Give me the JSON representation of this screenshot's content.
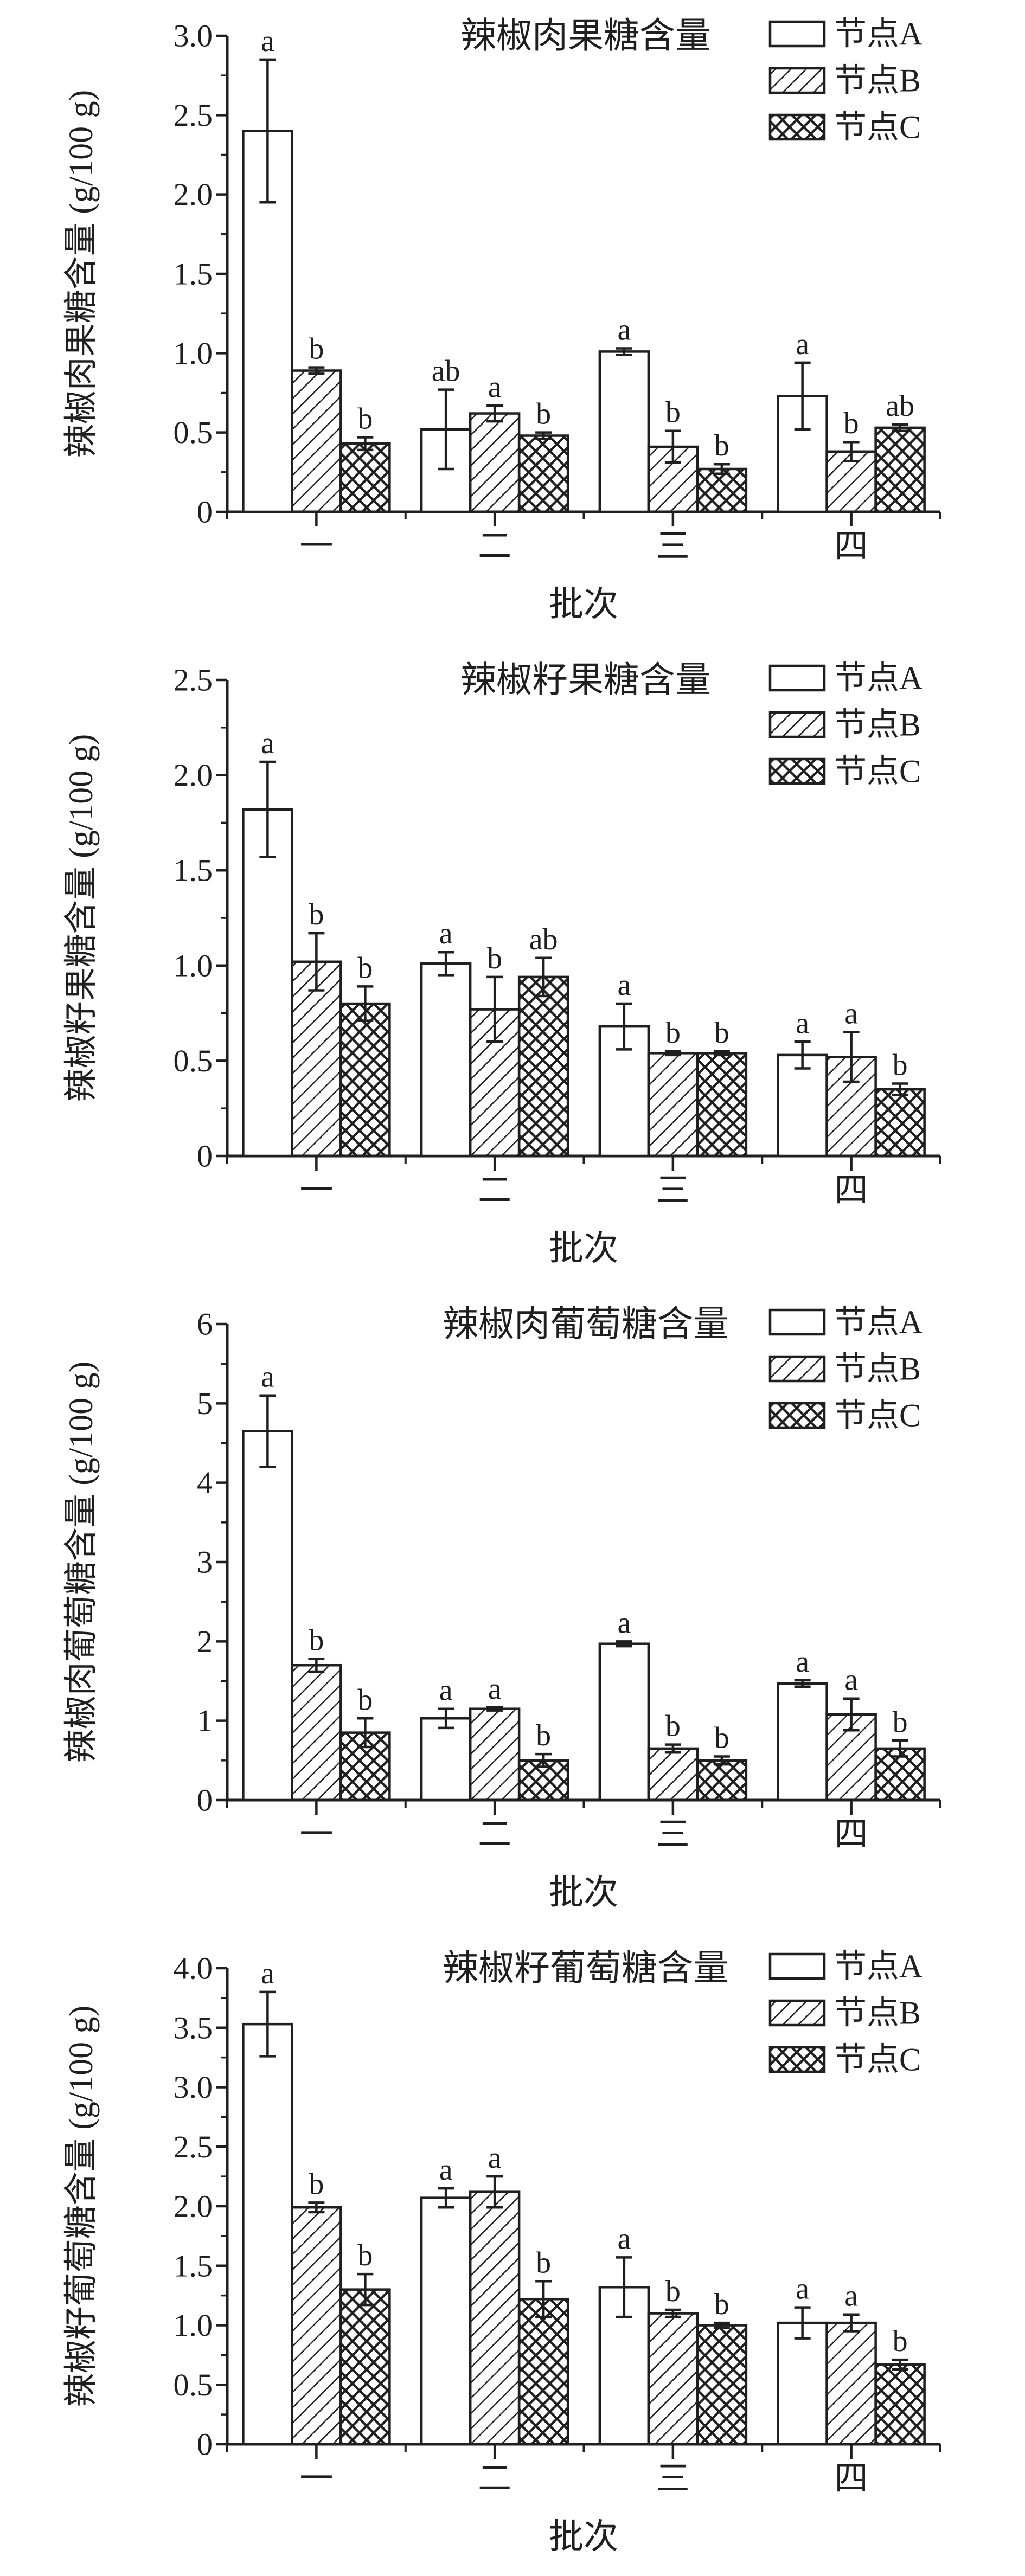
{
  "page": {
    "background": "#ffffff",
    "ink": "#1f1f1f"
  },
  "figure": {
    "xlabel": "批次",
    "categories": [
      "一",
      "二",
      "三",
      "四"
    ],
    "legend": [
      "节点A",
      "节点B",
      "节点C"
    ],
    "legend_patterns": [
      "plain-white",
      "diagonal-hatch",
      "cross-hatch"
    ],
    "units": "g/100 g"
  },
  "chart_data": [
    {
      "type": "bar",
      "title": "辣椒肉果糖含量",
      "ylabel": "辣椒肉果糖含量 (g/100 g)",
      "xlabel": "批次",
      "categories": [
        "一",
        "二",
        "三",
        "四"
      ],
      "ylim": [
        0,
        3.0
      ],
      "ytick_step": 0.5,
      "y_minor_step": 0.25,
      "ytick_labels": [
        "0",
        "0.5",
        "1.0",
        "1.5",
        "2.0",
        "2.5",
        "3.0"
      ],
      "grid": false,
      "legend_position": "top-right-inside",
      "series": [
        {
          "name": "节点A",
          "pattern": "plain-white",
          "values": [
            2.4,
            0.52,
            1.01,
            0.73
          ],
          "errors": [
            0.45,
            0.25,
            0.02,
            0.21
          ],
          "sig_letters": [
            "a",
            "ab",
            "a",
            "a"
          ]
        },
        {
          "name": "节点B",
          "pattern": "diagonal-hatch",
          "values": [
            0.89,
            0.62,
            0.41,
            0.38
          ],
          "errors": [
            0.02,
            0.05,
            0.1,
            0.06
          ],
          "sig_letters": [
            "b",
            "a",
            "b",
            "b"
          ]
        },
        {
          "name": "节点C",
          "pattern": "cross-hatch",
          "values": [
            0.43,
            0.48,
            0.27,
            0.53
          ],
          "errors": [
            0.04,
            0.02,
            0.03,
            0.02
          ],
          "sig_letters": [
            "b",
            "b",
            "b",
            "ab"
          ]
        }
      ]
    },
    {
      "type": "bar",
      "title": "辣椒籽果糖含量",
      "ylabel": "辣椒籽果糖含量 (g/100 g)",
      "xlabel": "批次",
      "categories": [
        "一",
        "二",
        "三",
        "四"
      ],
      "ylim": [
        0,
        2.5
      ],
      "ytick_step": 0.5,
      "y_minor_step": 0.25,
      "ytick_labels": [
        "0",
        "0.5",
        "1.0",
        "1.5",
        "2.0",
        "2.5"
      ],
      "grid": false,
      "legend_position": "top-right-inside",
      "series": [
        {
          "name": "节点A",
          "pattern": "plain-white",
          "values": [
            1.82,
            1.01,
            0.68,
            0.53
          ],
          "errors": [
            0.25,
            0.06,
            0.12,
            0.07
          ],
          "sig_letters": [
            "a",
            "a",
            "a",
            "a"
          ]
        },
        {
          "name": "节点B",
          "pattern": "diagonal-hatch",
          "values": [
            1.02,
            0.77,
            0.54,
            0.52
          ],
          "errors": [
            0.15,
            0.17,
            0.01,
            0.13
          ],
          "sig_letters": [
            "b",
            "b",
            "b",
            "a"
          ]
        },
        {
          "name": "节点C",
          "pattern": "cross-hatch",
          "values": [
            0.8,
            0.94,
            0.54,
            0.35
          ],
          "errors": [
            0.09,
            0.1,
            0.01,
            0.03
          ],
          "sig_letters": [
            "b",
            "ab",
            "b",
            "b"
          ]
        }
      ]
    },
    {
      "type": "bar",
      "title": "辣椒肉葡萄糖含量",
      "ylabel": "辣椒肉葡萄糖含量 (g/100 g)",
      "xlabel": "批次",
      "categories": [
        "一",
        "二",
        "三",
        "四"
      ],
      "ylim": [
        0,
        6
      ],
      "ytick_step": 1,
      "y_minor_step": 0.5,
      "ytick_labels": [
        "0",
        "1",
        "2",
        "3",
        "4",
        "5",
        "6"
      ],
      "grid": false,
      "legend_position": "top-right-inside",
      "series": [
        {
          "name": "节点A",
          "pattern": "plain-white",
          "values": [
            4.65,
            1.03,
            1.97,
            1.47
          ],
          "errors": [
            0.45,
            0.12,
            0.03,
            0.04
          ],
          "sig_letters": [
            "a",
            "a",
            "a",
            "a"
          ]
        },
        {
          "name": "节点B",
          "pattern": "diagonal-hatch",
          "values": [
            1.7,
            1.15,
            0.65,
            1.08
          ],
          "errors": [
            0.08,
            0.02,
            0.05,
            0.2
          ],
          "sig_letters": [
            "b",
            "a",
            "b",
            "a"
          ]
        },
        {
          "name": "节点C",
          "pattern": "cross-hatch",
          "values": [
            0.85,
            0.5,
            0.5,
            0.65
          ],
          "errors": [
            0.18,
            0.08,
            0.05,
            0.1
          ],
          "sig_letters": [
            "b",
            "b",
            "b",
            "b"
          ]
        }
      ]
    },
    {
      "type": "bar",
      "title": "辣椒籽葡萄糖含量",
      "ylabel": "辣椒籽葡萄糖含量 (g/100 g)",
      "xlabel": "批次",
      "categories": [
        "一",
        "二",
        "三",
        "四"
      ],
      "ylim": [
        0,
        4.0
      ],
      "ytick_step": 0.5,
      "y_minor_step": 0.25,
      "ytick_labels": [
        "0",
        "0.5",
        "1.0",
        "1.5",
        "2.0",
        "2.5",
        "3.0",
        "3.5",
        "4.0"
      ],
      "grid": false,
      "legend_position": "top-right-inside",
      "series": [
        {
          "name": "节点A",
          "pattern": "plain-white",
          "values": [
            3.53,
            2.07,
            1.32,
            1.02
          ],
          "errors": [
            0.27,
            0.08,
            0.25,
            0.13
          ],
          "sig_letters": [
            "a",
            "a",
            "a",
            "a"
          ]
        },
        {
          "name": "节点B",
          "pattern": "diagonal-hatch",
          "values": [
            1.99,
            2.12,
            1.1,
            1.02
          ],
          "errors": [
            0.04,
            0.13,
            0.03,
            0.07
          ],
          "sig_letters": [
            "b",
            "a",
            "b",
            "a"
          ]
        },
        {
          "name": "节点C",
          "pattern": "cross-hatch",
          "values": [
            1.3,
            1.22,
            1.0,
            0.67
          ],
          "errors": [
            0.13,
            0.15,
            0.02,
            0.04
          ],
          "sig_letters": [
            "b",
            "b",
            "b",
            "b"
          ]
        }
      ]
    }
  ]
}
